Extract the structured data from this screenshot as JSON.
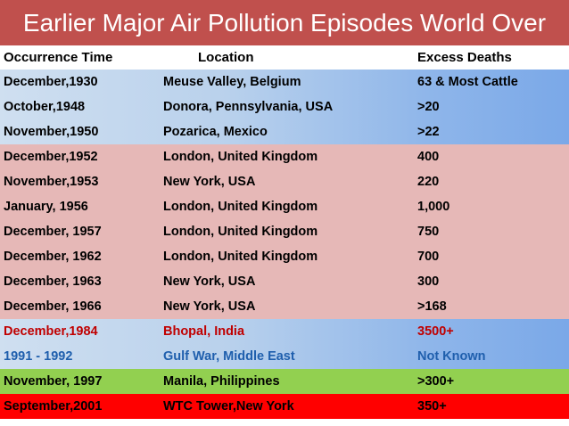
{
  "title": "Earlier  Major  Air Pollution  Episodes  World Over",
  "colors": {
    "title_bar": "#c0504d",
    "pink_rows": "#e6b8b7",
    "green_row": "#92d050",
    "red_row": "#ff0000",
    "bhopal_text": "#c00000",
    "gulf_text": "#1f5fad"
  },
  "headers": {
    "time": "Occurrence Time",
    "location": "Location",
    "deaths": "Excess Deaths"
  },
  "rows": [
    {
      "time": "December,1930",
      "location": "Meuse Valley,  Belgium",
      "deaths": "63 & Most Cattle"
    },
    {
      "time": "October,1948",
      "location": "Donora, Pennsylvania, USA",
      "deaths": ">20"
    },
    {
      "time": "November,1950",
      "location": "Pozarica, Mexico",
      "deaths": ">22"
    },
    {
      "time": "December,1952",
      "location": "London, United Kingdom",
      "deaths": "400"
    },
    {
      "time": "November,1953",
      "location": "New York, USA",
      "deaths": "220"
    },
    {
      "time": "January, 1956",
      "location": "London, United Kingdom",
      "deaths": "1,000"
    },
    {
      "time": "December, 1957",
      "location": "London, United Kingdom",
      "deaths": "750"
    },
    {
      "time": "December, 1962",
      "location": "London, United Kingdom",
      "deaths": "700"
    },
    {
      "time": "December, 1963",
      "location": "New York, USA",
      "deaths": "300"
    },
    {
      "time": "December, 1966",
      "location": "New York, USA",
      "deaths": ">168"
    },
    {
      "time": "December,1984",
      "location": "Bhopal, India",
      "deaths": "3500+"
    },
    {
      "time": "1991 - 1992",
      "location": "Gulf War,  Middle East",
      "deaths": "Not Known"
    },
    {
      "time": "November, 1997",
      "location": "Manila, Philippines",
      "deaths": ">300+"
    },
    {
      "time": "September,2001",
      "location": "WTC Tower,New York",
      "deaths": "350+"
    }
  ]
}
